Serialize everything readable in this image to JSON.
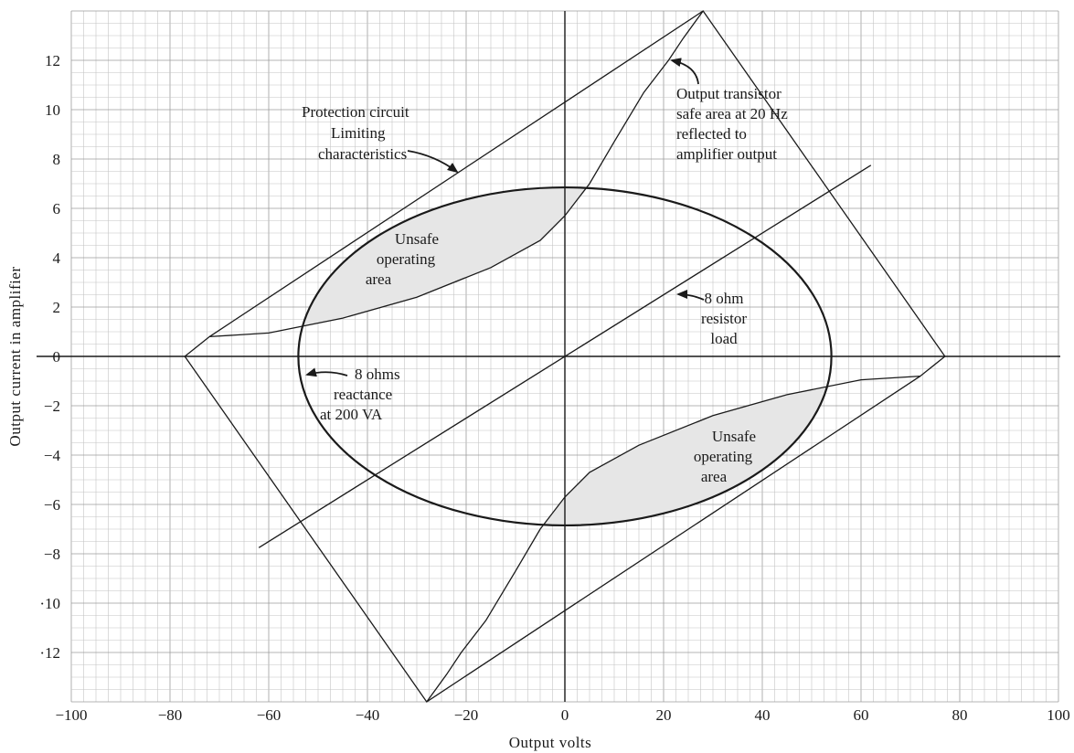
{
  "chart_data": {
    "type": "line",
    "xlabel": "Output volts",
    "ylabel": "Output current in amplifier",
    "xlim": [
      -100,
      100
    ],
    "ylim": [
      -14,
      14
    ],
    "grid": true,
    "x_ticks": [
      "−100",
      "−80",
      "−60",
      "−40",
      "−20",
      "0",
      "20",
      "40",
      "60",
      "80",
      "100"
    ],
    "y_ticks": [
      {
        "value": 12,
        "label": "12"
      },
      {
        "value": 10,
        "label": "10"
      },
      {
        "value": 8,
        "label": "8"
      },
      {
        "value": 6,
        "label": "6"
      },
      {
        "value": 4,
        "label": "4"
      },
      {
        "value": 2,
        "label": "2"
      },
      {
        "value": 0,
        "label": "0"
      },
      {
        "value": -2,
        "label": "−2"
      },
      {
        "value": -4,
        "label": "−4"
      },
      {
        "value": -6,
        "label": "−6"
      },
      {
        "value": -8,
        "label": "−8"
      },
      {
        "value": -10,
        "label": "·10"
      },
      {
        "value": -12,
        "label": "·12"
      }
    ],
    "series": [
      {
        "key": "protection",
        "points": [
          [
            -77,
            0
          ],
          [
            -72,
            0.8
          ],
          [
            28,
            14
          ],
          [
            77,
            0
          ],
          [
            72,
            -0.8
          ],
          [
            -28,
            -14
          ]
        ]
      },
      {
        "key": "resistor-8ohm",
        "points": [
          [
            -62,
            -7.75
          ],
          [
            62,
            7.75
          ]
        ]
      },
      {
        "key": "reactance-8ohm",
        "ellipse": {
          "center": [
            0,
            0
          ],
          "rx": 54,
          "ry": 6.85
        }
      },
      {
        "key": "transistor-safe-area-upper",
        "points": [
          [
            -72,
            0.8
          ],
          [
            -60,
            0.95
          ],
          [
            -45,
            1.55
          ],
          [
            -30,
            2.4
          ],
          [
            -15,
            3.6
          ],
          [
            -5,
            4.7
          ],
          [
            0,
            5.7
          ],
          [
            5,
            7.0
          ],
          [
            10,
            8.7
          ],
          [
            16,
            10.7
          ],
          [
            21,
            12
          ],
          [
            24,
            12.9
          ],
          [
            28,
            14
          ]
        ]
      },
      {
        "key": "transistor-safe-area-lower",
        "points": [
          [
            72,
            -0.8
          ],
          [
            60,
            -0.95
          ],
          [
            45,
            -1.55
          ],
          [
            30,
            -2.4
          ],
          [
            15,
            -3.6
          ],
          [
            5,
            -4.7
          ],
          [
            0,
            -5.7
          ],
          [
            -5,
            -7.0
          ],
          [
            -10,
            -8.7
          ],
          [
            -16,
            -10.7
          ],
          [
            -21,
            -12
          ],
          [
            -24,
            -12.9
          ],
          [
            -28,
            -14
          ]
        ]
      }
    ],
    "annotations": {
      "protection": [
        "Protection circuit",
        "Limiting",
        "characteristics"
      ],
      "transistor": [
        "Output transistor",
        "safe area at 20 Hz",
        "reflected to",
        "amplifier output"
      ],
      "resistor": [
        "8 ohm",
        "resistor",
        "load"
      ],
      "reactance": [
        "8 ohms",
        "reactance",
        "at 200 VA"
      ],
      "unsafe_upper": [
        "Unsafe",
        "operating",
        "area"
      ],
      "unsafe_lower": [
        "Unsafe",
        "operating",
        "area"
      ]
    }
  }
}
